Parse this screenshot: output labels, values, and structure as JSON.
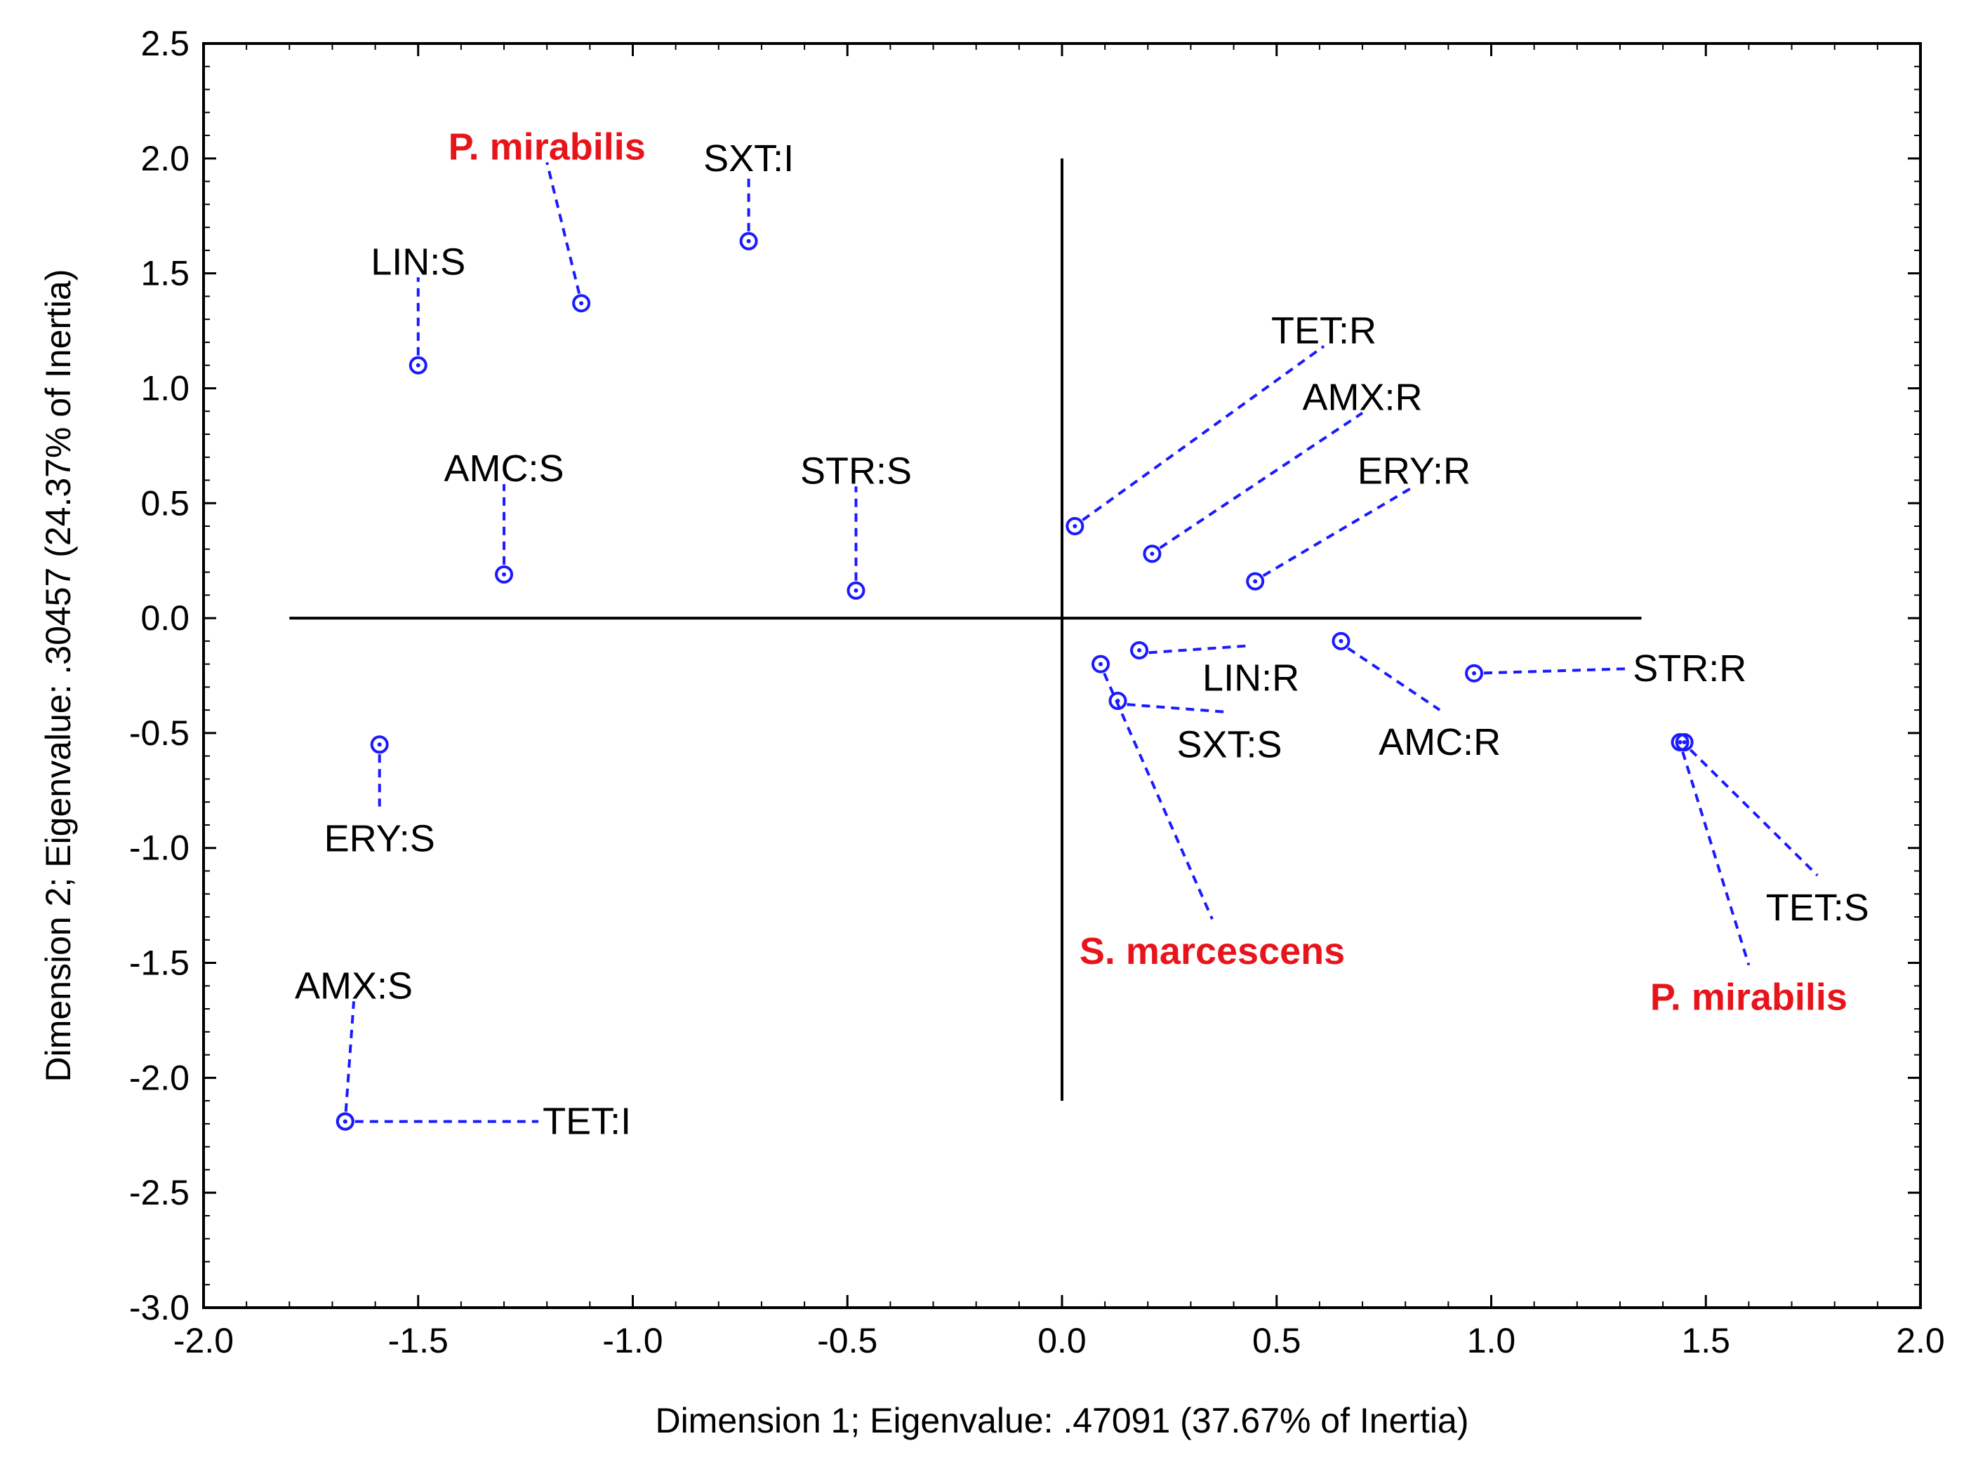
{
  "chart_data": {
    "type": "scatter",
    "title": "",
    "xlabel": "Dimension 1; Eigenvalue: .47091 (37.67% of Inertia)",
    "ylabel": "Dimension 2; Eigenvalue: .30457 (24.37% of Inertia)",
    "xlim": [
      -2.0,
      2.0
    ],
    "ylim": [
      -3.0,
      2.5
    ],
    "xticks": [
      -2.0,
      -1.5,
      -1.0,
      -0.5,
      0.0,
      0.5,
      1.0,
      1.5,
      2.0
    ],
    "yticks": [
      2.5,
      2.0,
      1.5,
      1.0,
      0.5,
      0.0,
      -0.5,
      -1.0,
      -1.5,
      -2.0,
      -2.5,
      -3.0
    ],
    "xtick_labels": [
      "-2.0",
      "-1.5",
      "-1.0",
      "-0.5",
      "0.0",
      "0.5",
      "1.0",
      "1.5",
      "2.0"
    ],
    "ytick_labels": [
      "2.5",
      "2.0",
      "1.5",
      "1.0",
      "0.5",
      "0.0",
      "-0.5",
      "-1.0",
      "-1.5",
      "-2.0",
      "-2.5",
      "-3.0"
    ],
    "reference_lines": {
      "horizontal": {
        "y": 0.0,
        "x_from": -1.8,
        "x_to": 1.35
      },
      "vertical": {
        "x": 0.0,
        "y_from": -2.1,
        "y_to": 2.0
      }
    },
    "marker_color": "#1a1aff",
    "highlight_color": "#e8141b",
    "points": [
      {
        "label": "P. mirabilis",
        "x": -1.12,
        "y": 1.37,
        "lx": -1.2,
        "ly": 2.05,
        "highlight": true
      },
      {
        "label": "SXT:I",
        "x": -0.73,
        "y": 1.64,
        "lx": -0.73,
        "ly": 2.0,
        "highlight": false
      },
      {
        "label": "LIN:S",
        "x": -1.5,
        "y": 1.1,
        "lx": -1.5,
        "ly": 1.55,
        "highlight": false
      },
      {
        "label": "AMC:S",
        "x": -1.3,
        "y": 0.19,
        "lx": -1.3,
        "ly": 0.65,
        "highlight": false
      },
      {
        "label": "STR:S",
        "x": -0.48,
        "y": 0.12,
        "lx": -0.48,
        "ly": 0.64,
        "highlight": false
      },
      {
        "label": "ERY:S",
        "x": -1.59,
        "y": -0.55,
        "lx": -1.59,
        "ly": -0.96,
        "highlight": false
      },
      {
        "label": "AMX:S",
        "x": -1.67,
        "y": -2.19,
        "lx": -1.65,
        "ly": -1.6,
        "highlight": false
      },
      {
        "label": "TET:I",
        "x": -1.67,
        "y": -2.19,
        "lx": -1.21,
        "ly": -2.19,
        "highlight": false
      },
      {
        "label": "TET:R",
        "x": 0.03,
        "y": 0.4,
        "lx": 0.61,
        "ly": 1.25,
        "highlight": false
      },
      {
        "label": "AMX:R",
        "x": 0.21,
        "y": 0.28,
        "lx": 0.7,
        "ly": 0.96,
        "highlight": false
      },
      {
        "label": "ERY:R",
        "x": 0.45,
        "y": 0.16,
        "lx": 0.82,
        "ly": 0.64,
        "highlight": false
      },
      {
        "label": "LIN:R",
        "x": 0.18,
        "y": -0.14,
        "lx": 0.44,
        "ly": -0.26,
        "highlight": false
      },
      {
        "label": "SXT:S",
        "x": 0.13,
        "y": -0.36,
        "lx": 0.39,
        "ly": -0.55,
        "highlight": false
      },
      {
        "label": "AMC:R",
        "x": 0.65,
        "y": -0.1,
        "lx": 0.88,
        "ly": -0.54,
        "highlight": false
      },
      {
        "label": "STR:R",
        "x": 0.96,
        "y": -0.24,
        "lx": 1.33,
        "ly": -0.22,
        "highlight": false
      },
      {
        "label": "S. marcescens",
        "x": 0.09,
        "y": -0.2,
        "lx": 0.35,
        "ly": -1.45,
        "highlight": true
      },
      {
        "label": "TET:S",
        "x": 1.45,
        "y": -0.54,
        "lx": 1.76,
        "ly": -1.26,
        "highlight": false
      },
      {
        "label": "P. mirabilis",
        "x": 1.44,
        "y": -0.54,
        "lx": 1.6,
        "ly": -1.65,
        "highlight": true
      }
    ]
  }
}
